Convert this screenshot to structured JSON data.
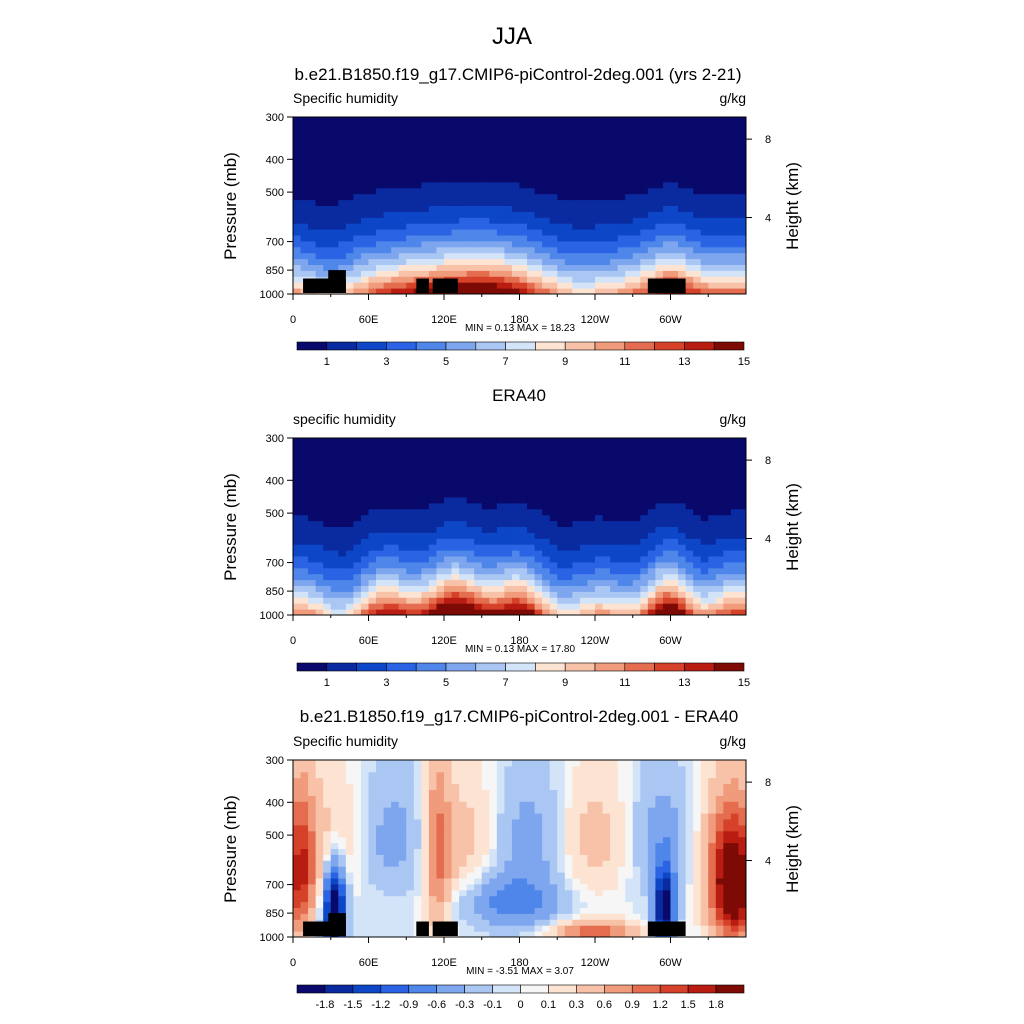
{
  "page_title": "JJA",
  "colors": {
    "qscale": [
      "#08096b",
      "#0a2aa0",
      "#0d47c8",
      "#2a63e3",
      "#4f86ea",
      "#7ea6ee",
      "#aac6f3",
      "#d4e4f8",
      "#fde3d2",
      "#f8c2a8",
      "#f09b7c",
      "#e56d4f",
      "#d6412a",
      "#b91d12",
      "#7d0a05"
    ],
    "dscale": [
      "#08096b",
      "#0a2aa0",
      "#0d47c8",
      "#2a63e3",
      "#4f86ea",
      "#7ea6ee",
      "#aac6f3",
      "#d4e4f8",
      "#f6f6f6",
      "#fde3d2",
      "#f8c2a8",
      "#f09b7c",
      "#e56d4f",
      "#d6412a",
      "#b91d12",
      "#7d0a05"
    ],
    "terrain": "#000000"
  },
  "chart_data": [
    {
      "type": "heatmap",
      "title": "b.e21.B1850.f19_g17.CMIP6-piControl-2deg.001 (yrs 2-21)",
      "left_label": "Specific humidity",
      "right_label": "g/kg",
      "ylabel": "Pressure (mb)",
      "y2label": "Height (km)",
      "yticks": [
        "300",
        "400",
        "500",
        "700",
        "850",
        "1000"
      ],
      "yticks_values": [
        300,
        400,
        500,
        700,
        850,
        1000
      ],
      "y2ticks": [
        "8",
        "4"
      ],
      "y2ticks_values": [
        8,
        4
      ],
      "xticks": [
        "0",
        "60E",
        "120E",
        "180",
        "120W",
        "60W"
      ],
      "xticks_values": [
        0,
        60,
        120,
        180,
        240,
        300
      ],
      "xlim": [
        0,
        360
      ],
      "ylim": [
        1000,
        300
      ],
      "y_scale": "log",
      "min_label": "MIN =   0.13  MAX =  18.23",
      "min": 0.13,
      "max": 18.23,
      "colorbar_labels": [
        "1",
        "3",
        "5",
        "7",
        "9",
        "11",
        "13",
        "15"
      ],
      "colorbar_levels": [
        0,
        1,
        2,
        3,
        4,
        5,
        6,
        7,
        8,
        9,
        10,
        11,
        12,
        13,
        14
      ],
      "terrain_mask": true
    },
    {
      "type": "heatmap",
      "title": "ERA40",
      "left_label": "specific humidity",
      "right_label": "g/kg",
      "ylabel": "Pressure (mb)",
      "y2label": "Height (km)",
      "yticks": [
        "300",
        "400",
        "500",
        "700",
        "850",
        "1000"
      ],
      "yticks_values": [
        300,
        400,
        500,
        700,
        850,
        1000
      ],
      "y2ticks": [
        "8",
        "4"
      ],
      "y2ticks_values": [
        8,
        4
      ],
      "xticks": [
        "0",
        "60E",
        "120E",
        "180",
        "120W",
        "60W"
      ],
      "xticks_values": [
        0,
        60,
        120,
        180,
        240,
        300
      ],
      "xlim": [
        0,
        360
      ],
      "ylim": [
        1000,
        300
      ],
      "y_scale": "log",
      "min_label": "MIN =   0.13  MAX =  17.80",
      "min": 0.13,
      "max": 17.8,
      "colorbar_labels": [
        "1",
        "3",
        "5",
        "7",
        "9",
        "11",
        "13",
        "15"
      ],
      "colorbar_levels": [
        0,
        1,
        2,
        3,
        4,
        5,
        6,
        7,
        8,
        9,
        10,
        11,
        12,
        13,
        14
      ],
      "terrain_mask": false
    },
    {
      "type": "heatmap",
      "title": "b.e21.B1850.f19_g17.CMIP6-piControl-2deg.001 - ERA40",
      "left_label": "Specific humidity",
      "right_label": "g/kg",
      "ylabel": "Pressure (mb)",
      "y2label": "Height (km)",
      "yticks": [
        "300",
        "400",
        "500",
        "700",
        "850",
        "1000"
      ],
      "yticks_values": [
        300,
        400,
        500,
        700,
        850,
        1000
      ],
      "y2ticks": [
        "8",
        "4"
      ],
      "y2ticks_values": [
        8,
        4
      ],
      "xticks": [
        "0",
        "60E",
        "120E",
        "180",
        "120W",
        "60W"
      ],
      "xticks_values": [
        0,
        60,
        120,
        180,
        240,
        300
      ],
      "xlim": [
        0,
        360
      ],
      "ylim": [
        1000,
        300
      ],
      "y_scale": "log",
      "min_label": "MIN =  -3.51  MAX =   3.07",
      "min": -3.51,
      "max": 3.07,
      "colorbar_labels": [
        "-1.8",
        "-1.5",
        "-1.2",
        "-0.9",
        "-0.6",
        "-0.3",
        "-0.1",
        "0",
        "0.1",
        "0.3",
        "0.6",
        "0.9",
        "1.2",
        "1.5",
        "1.8"
      ],
      "colorbar_levels": [
        -1.8,
        -1.5,
        -1.2,
        -0.9,
        -0.6,
        -0.3,
        -0.1,
        0,
        0.1,
        0.3,
        0.6,
        0.9,
        1.2,
        1.5,
        1.8
      ],
      "terrain_mask": true
    }
  ]
}
